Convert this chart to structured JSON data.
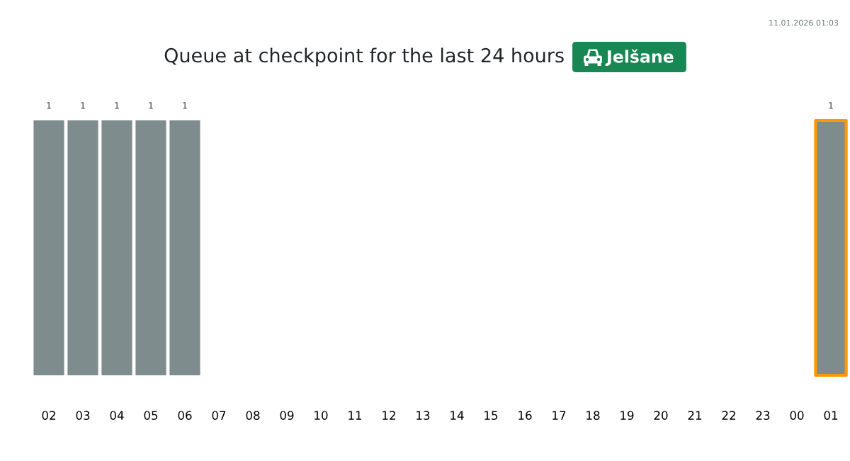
{
  "chart_data": {
    "type": "bar",
    "title": "Queue at checkpoint for the last 24 hours",
    "subtitle": "Jelšane",
    "annotations": [
      "11.01.2026 01:03"
    ],
    "categories": [
      "02",
      "03",
      "04",
      "05",
      "06",
      "07",
      "08",
      "09",
      "10",
      "11",
      "12",
      "13",
      "14",
      "15",
      "16",
      "17",
      "18",
      "19",
      "20",
      "21",
      "22",
      "23",
      "00",
      "01"
    ],
    "values": [
      1,
      1,
      1,
      1,
      1,
      null,
      null,
      null,
      null,
      null,
      null,
      null,
      null,
      null,
      null,
      null,
      null,
      null,
      null,
      null,
      null,
      null,
      null,
      1
    ],
    "color": "#7f8c8d",
    "data_labels": true
  }
}
